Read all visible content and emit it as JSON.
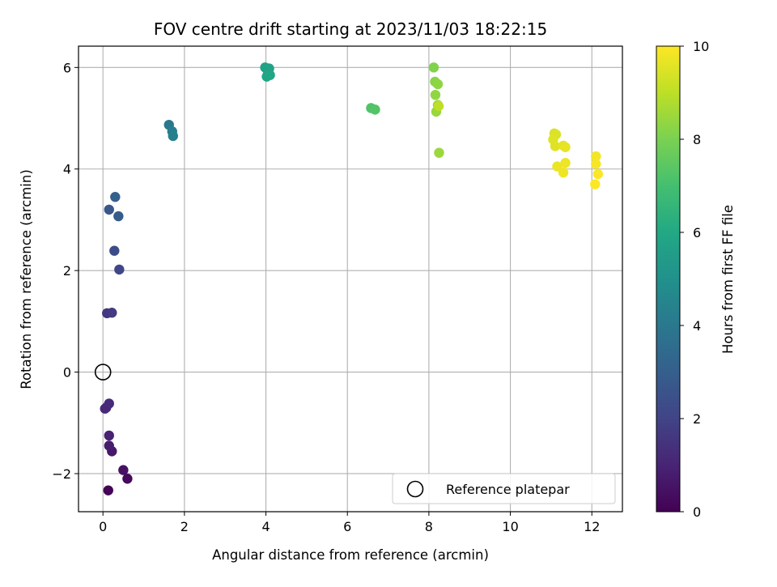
{
  "chart_data": {
    "type": "scatter",
    "title": "FOV centre drift starting at 2023/11/03 18:22:15",
    "xlabel": "Angular distance from reference (arcmin)",
    "ylabel": "Rotation from reference (arcmin)",
    "xlim": [
      -0.6,
      12.75
    ],
    "ylim": [
      -2.75,
      6.42
    ],
    "xticks": [
      0,
      2,
      4,
      6,
      8,
      10,
      12
    ],
    "yticks": [
      -2,
      0,
      2,
      4,
      6
    ],
    "xtick_labels": [
      "0",
      "2",
      "4",
      "6",
      "8",
      "10",
      "12"
    ],
    "ytick_labels": [
      "−2",
      "0",
      "2",
      "4",
      "6"
    ],
    "grid": true,
    "legend": {
      "label": "Reference platepar",
      "placement": "lower-right"
    },
    "reference_point": {
      "x": 0,
      "y": 0
    },
    "colorbar": {
      "label": "Hours from first FF file",
      "min": 0,
      "max": 10,
      "ticks": [
        0,
        2,
        4,
        6,
        8,
        10
      ],
      "tick_labels": [
        "0",
        "2",
        "4",
        "6",
        "8",
        "10"
      ],
      "colormap": "viridis"
    },
    "points": [
      {
        "x": 0.13,
        "y": -2.33,
        "h": 0.05
      },
      {
        "x": 0.6,
        "y": -2.1,
        "h": 0.25
      },
      {
        "x": 0.5,
        "y": -1.93,
        "h": 0.45
      },
      {
        "x": 0.22,
        "y": -1.56,
        "h": 0.65
      },
      {
        "x": 0.15,
        "y": -1.45,
        "h": 0.8
      },
      {
        "x": 0.15,
        "y": -1.25,
        "h": 0.95
      },
      {
        "x": 0.08,
        "y": -0.7,
        "h": 1.1
      },
      {
        "x": 0.05,
        "y": -0.72,
        "h": 1.15
      },
      {
        "x": 0.15,
        "y": -0.62,
        "h": 1.2
      },
      {
        "x": 0.1,
        "y": 1.16,
        "h": 1.6
      },
      {
        "x": 0.22,
        "y": 1.17,
        "h": 1.7
      },
      {
        "x": 0.4,
        "y": 2.02,
        "h": 2.1
      },
      {
        "x": 0.28,
        "y": 2.39,
        "h": 2.3
      },
      {
        "x": 0.15,
        "y": 3.2,
        "h": 2.7
      },
      {
        "x": 0.38,
        "y": 3.07,
        "h": 2.9
      },
      {
        "x": 0.3,
        "y": 3.45,
        "h": 3.0
      },
      {
        "x": 1.62,
        "y": 4.87,
        "h": 4.0
      },
      {
        "x": 1.7,
        "y": 4.74,
        "h": 4.2
      },
      {
        "x": 1.72,
        "y": 4.65,
        "h": 4.35
      },
      {
        "x": 3.98,
        "y": 6.0,
        "h": 5.7
      },
      {
        "x": 4.08,
        "y": 5.98,
        "h": 5.75
      },
      {
        "x": 4.05,
        "y": 5.88,
        "h": 5.8
      },
      {
        "x": 4.02,
        "y": 5.82,
        "h": 5.85
      },
      {
        "x": 4.1,
        "y": 5.85,
        "h": 5.9
      },
      {
        "x": 6.58,
        "y": 5.2,
        "h": 7.2
      },
      {
        "x": 6.68,
        "y": 5.17,
        "h": 7.3
      },
      {
        "x": 8.12,
        "y": 6.0,
        "h": 8.1
      },
      {
        "x": 8.15,
        "y": 5.72,
        "h": 8.2
      },
      {
        "x": 8.22,
        "y": 5.67,
        "h": 8.3
      },
      {
        "x": 8.16,
        "y": 5.46,
        "h": 8.35
      },
      {
        "x": 8.22,
        "y": 5.26,
        "h": 8.4
      },
      {
        "x": 8.18,
        "y": 5.13,
        "h": 8.45
      },
      {
        "x": 8.25,
        "y": 4.32,
        "h": 8.5
      },
      {
        "x": 8.24,
        "y": 5.24,
        "h": 9.0
      },
      {
        "x": 11.08,
        "y": 4.7,
        "h": 9.4
      },
      {
        "x": 11.12,
        "y": 4.68,
        "h": 9.45
      },
      {
        "x": 11.05,
        "y": 4.58,
        "h": 9.5
      },
      {
        "x": 11.1,
        "y": 4.45,
        "h": 9.55
      },
      {
        "x": 11.3,
        "y": 4.46,
        "h": 9.6
      },
      {
        "x": 11.35,
        "y": 4.43,
        "h": 9.65
      },
      {
        "x": 11.15,
        "y": 4.05,
        "h": 9.7
      },
      {
        "x": 11.35,
        "y": 4.12,
        "h": 9.75
      },
      {
        "x": 11.3,
        "y": 3.93,
        "h": 9.8
      },
      {
        "x": 12.1,
        "y": 4.25,
        "h": 9.85
      },
      {
        "x": 12.1,
        "y": 4.1,
        "h": 9.9
      },
      {
        "x": 12.15,
        "y": 3.9,
        "h": 9.95
      },
      {
        "x": 12.08,
        "y": 3.7,
        "h": 10.0
      }
    ]
  }
}
